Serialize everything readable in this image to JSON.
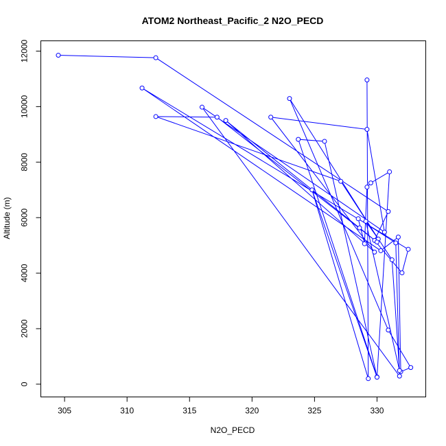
{
  "chart_data": {
    "type": "line",
    "title": "ATOM2 Northeast_Pacific_2 N2O_PECD",
    "xlabel": "N2O_PECD",
    "ylabel": "Altitude (m)",
    "xlim": [
      303.1,
      634.0
    ],
    "ylim": [
      -460,
      12370
    ],
    "x_ticks": [
      305,
      310,
      315,
      320,
      325,
      330
    ],
    "y_ticks": [
      0,
      2000,
      4000,
      6000,
      8000,
      10000,
      12000
    ],
    "x_tick_labels": [
      "305",
      "310",
      "315",
      "320",
      "325",
      "330"
    ],
    "y_tick_labels": [
      "0",
      "2000",
      "4000",
      "6000",
      "8000",
      "10000",
      "12000"
    ],
    "series_color": "#0000ff",
    "marker": "open-circle",
    "grid": false,
    "x": [
      304.5,
      312.3,
      330.9,
      329.8,
      332.0,
      332.5,
      311.2,
      330.3,
      331.7,
      331.9,
      332.7,
      330.9,
      323.0,
      330.1,
      329.1,
      331.8,
      331.2,
      327.1,
      312.3,
      317.2,
      330.0,
      328.6,
      317.9,
      329.8,
      321.5,
      329.2,
      330.6,
      316.0,
      331.8,
      331.5,
      328.5,
      329.0,
      329.2,
      329.5,
      331.0,
      330.0,
      323.7,
      325.8,
      330.0,
      324.8,
      329.3,
      329.2
    ],
    "y": [
      11850,
      11760,
      6220,
      5180,
      4010,
      4860,
      10670,
      4810,
      5300,
      450,
      600,
      1950,
      10290,
      5230,
      5870,
      490,
      4480,
      7310,
      9640,
      9620,
      5120,
      5630,
      9500,
      4760,
      9620,
      9180,
      5480,
      9980,
      290,
      5090,
      5960,
      5060,
      7100,
      7250,
      7650,
      260,
      8820,
      8750,
      250,
      7000,
      200,
      10960
    ]
  }
}
